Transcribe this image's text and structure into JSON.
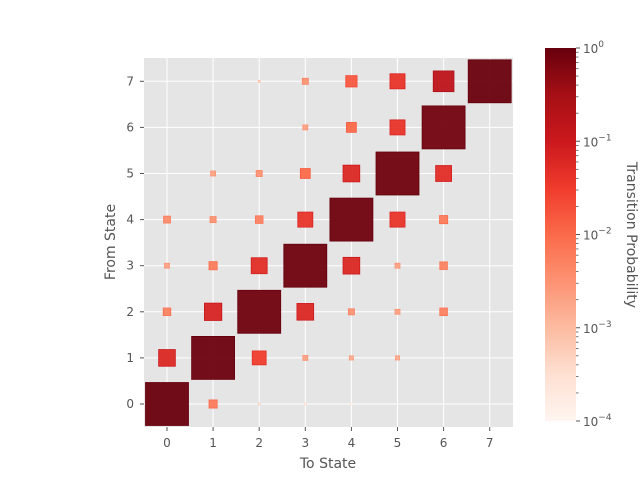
{
  "chart_data": {
    "type": "heatmap",
    "title": "",
    "xlabel": "To State",
    "ylabel": "From State",
    "x_ticks": [
      "0",
      "1",
      "2",
      "3",
      "4",
      "5",
      "6",
      "7"
    ],
    "y_ticks": [
      "0",
      "1",
      "2",
      "3",
      "4",
      "5",
      "6",
      "7"
    ],
    "xlim": [
      -0.5,
      7.5
    ],
    "ylim": [
      -0.5,
      7.5
    ],
    "grid": true,
    "marker": "square sized and colored by probability",
    "colorbar": {
      "label": "Transition Probability",
      "scale": "log",
      "range": [
        0.0001,
        1
      ],
      "ticks": [
        "10^0",
        "10^-1",
        "10^-2",
        "10^-3",
        "10^-4"
      ],
      "colormap": "Reds"
    },
    "matrix_from_to": [
      [
        0.97,
        0.006,
        0.0003,
        0.0002,
        0.0001,
        0.0,
        0.0,
        0.0
      ],
      [
        0.06,
        0.9,
        0.03,
        0.002,
        0.0015,
        0.0015,
        0.0,
        0.0
      ],
      [
        0.005,
        0.07,
        0.85,
        0.06,
        0.003,
        0.002,
        0.005,
        0.0
      ],
      [
        0.002,
        0.006,
        0.05,
        0.85,
        0.06,
        0.002,
        0.005,
        0.0
      ],
      [
        0.004,
        0.003,
        0.005,
        0.04,
        0.85,
        0.04,
        0.006,
        0.0
      ],
      [
        0.0,
        0.002,
        0.003,
        0.01,
        0.06,
        0.85,
        0.05,
        0.0
      ],
      [
        0.0,
        0.0,
        0.0,
        0.002,
        0.01,
        0.04,
        0.8,
        0.0
      ],
      [
        0.0,
        0.0,
        0.0005,
        0.003,
        0.015,
        0.04,
        0.15,
        0.95
      ]
    ]
  },
  "axes": {
    "xlabel": "To State",
    "ylabel": "From State",
    "colorbar_label": "Transition Probability",
    "colorbar_ticks": [
      {
        "base": "10",
        "exp": "0"
      },
      {
        "base": "10",
        "exp": "−1"
      },
      {
        "base": "10",
        "exp": "−2"
      },
      {
        "base": "10",
        "exp": "−3"
      },
      {
        "base": "10",
        "exp": "−4"
      }
    ]
  }
}
